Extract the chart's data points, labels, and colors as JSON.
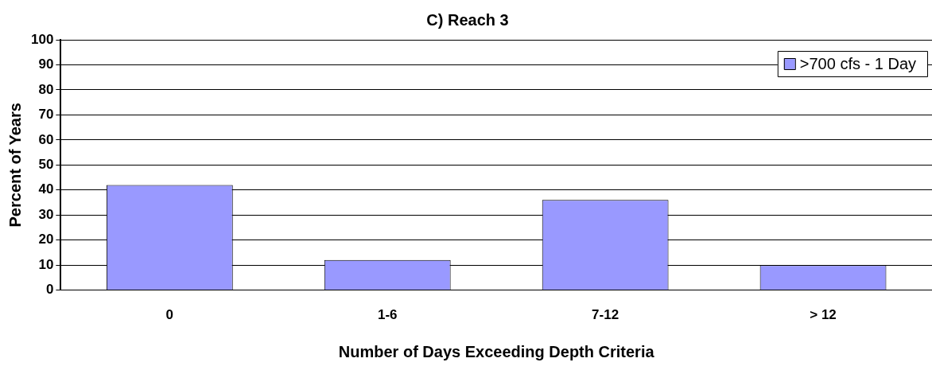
{
  "chart_data": {
    "type": "bar",
    "title": "C) Reach 3",
    "xlabel": "Number of Days Exceeding Depth Criteria",
    "ylabel": "Percent of Years",
    "categories": [
      "0",
      "1-6",
      "7-12",
      "> 12"
    ],
    "series": [
      {
        "name": ">700 cfs - 1 Day",
        "color": "#9999ff",
        "values": [
          42,
          12,
          36,
          10
        ]
      }
    ],
    "ylim": [
      0,
      100
    ],
    "yticks": [
      0,
      10,
      20,
      30,
      40,
      50,
      60,
      70,
      80,
      90,
      100
    ],
    "grid": "y",
    "legend": "top right"
  }
}
